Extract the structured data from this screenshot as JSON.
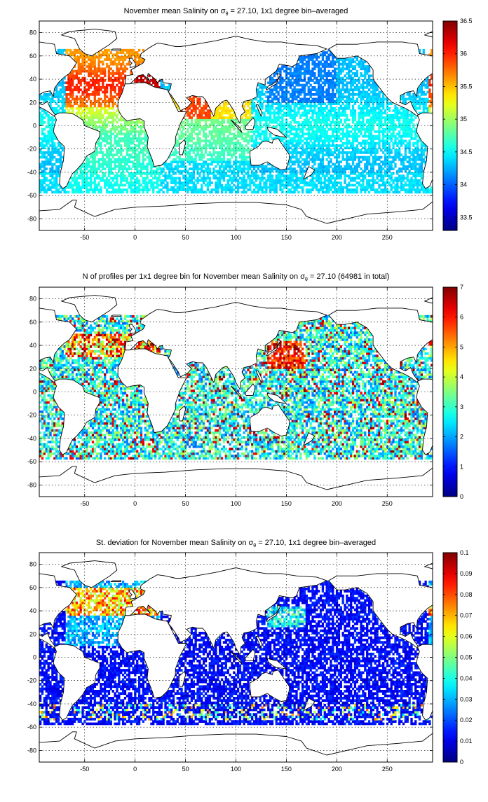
{
  "charts": [
    {
      "id": "salinity-mean",
      "type": "heatmap",
      "title_main": "November mean Salinity on ",
      "title_sym": "σ",
      "title_sub": "θ",
      "title_tail": " = 27.10, 1x1 degree bin–averaged",
      "xticks": [
        -50,
        0,
        50,
        100,
        150,
        200,
        250
      ],
      "yticks": [
        -80,
        -60,
        -40,
        -20,
        0,
        20,
        40,
        60,
        80
      ],
      "xlim": [
        -95,
        295
      ],
      "ylim": [
        -90,
        90
      ],
      "grid": true,
      "colorbar": {
        "ticks": [
          "33.5",
          "34",
          "34.5",
          "35",
          "35.5",
          "36",
          "36.5"
        ],
        "vmin": 33.3,
        "vmax": 36.5
      }
    },
    {
      "id": "profile-count",
      "type": "heatmap",
      "title_main": "N of profiles per 1x1 degree bin for November mean Salinity on ",
      "title_sym": "σ",
      "title_sub": "θ",
      "title_tail": " = 27.10 (64981 in total)",
      "xticks": [
        -50,
        0,
        50,
        100,
        150,
        200,
        250
      ],
      "yticks": [
        -80,
        -60,
        -40,
        -20,
        0,
        20,
        40,
        60,
        80
      ],
      "xlim": [
        -95,
        295
      ],
      "ylim": [
        -90,
        90
      ],
      "grid": true,
      "colorbar": {
        "ticks": [
          "0",
          "1",
          "2",
          "3",
          "4",
          "5",
          "6",
          "7"
        ],
        "vmin": 0,
        "vmax": 7
      }
    },
    {
      "id": "salinity-std",
      "type": "heatmap",
      "title_main": "St. deviation for November mean Salinity on ",
      "title_sym": "σ",
      "title_sub": "θ",
      "title_tail": " = 27.10, 1x1 degree bin–averaged",
      "xticks": [
        -50,
        0,
        50,
        100,
        150,
        200,
        250
      ],
      "yticks": [
        -80,
        -60,
        -40,
        -20,
        0,
        20,
        40,
        60,
        80
      ],
      "xlim": [
        -95,
        295
      ],
      "ylim": [
        -90,
        90
      ],
      "grid": true,
      "colorbar": {
        "ticks": [
          "0",
          "0.01",
          "0.02",
          "0.03",
          "0.04",
          "0.05",
          "0.06",
          "0.07",
          "0.08",
          "0.09",
          "0.1"
        ],
        "vmin": 0,
        "vmax": 0.1
      }
    }
  ]
}
